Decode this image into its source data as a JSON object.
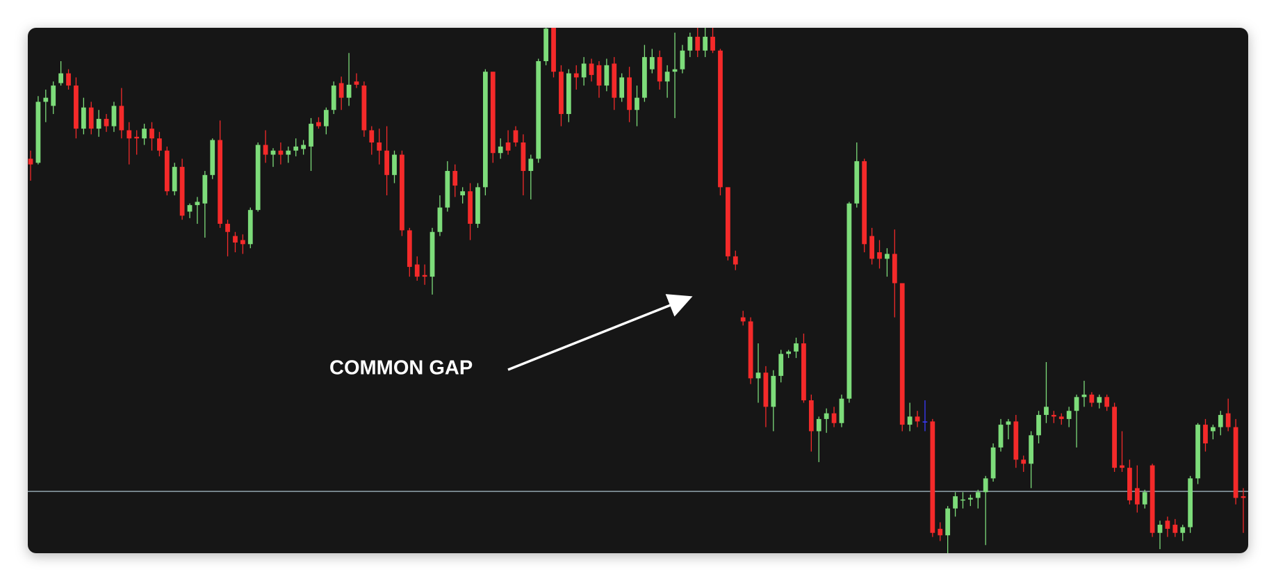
{
  "chart_data": {
    "type": "candlestick",
    "annotation": "COMMON GAP",
    "ylim": [
      0,
      646
    ],
    "up_color": "#7ddc7a",
    "down_color": "#f42a2a",
    "doji_color": "#3a3aff",
    "hline": {
      "value": 76,
      "color": "#9fb3bd"
    },
    "candles": [
      [
        485,
        495,
        458,
        478
      ],
      [
        480,
        562,
        478,
        555
      ],
      [
        555,
        570,
        530,
        560
      ],
      [
        550,
        580,
        540,
        575
      ],
      [
        578,
        605,
        575,
        590
      ],
      [
        590,
        595,
        570,
        575
      ],
      [
        575,
        585,
        510,
        522
      ],
      [
        522,
        560,
        515,
        548
      ],
      [
        548,
        555,
        515,
        522
      ],
      [
        522,
        545,
        512,
        534
      ],
      [
        534,
        540,
        518,
        525
      ],
      [
        525,
        555,
        518,
        550
      ],
      [
        550,
        572,
        510,
        520
      ],
      [
        520,
        530,
        478,
        510
      ],
      [
        512,
        520,
        490,
        510
      ],
      [
        510,
        528,
        502,
        522
      ],
      [
        522,
        530,
        495,
        510
      ],
      [
        510,
        518,
        488,
        495
      ],
      [
        495,
        500,
        440,
        445
      ],
      [
        445,
        480,
        440,
        475
      ],
      [
        475,
        485,
        410,
        415
      ],
      [
        420,
        430,
        412,
        428
      ],
      [
        428,
        438,
        405,
        432
      ],
      [
        430,
        470,
        388,
        465
      ],
      [
        465,
        510,
        460,
        508
      ],
      [
        508,
        532,
        400,
        405
      ],
      [
        405,
        410,
        365,
        395
      ],
      [
        390,
        395,
        370,
        382
      ],
      [
        385,
        392,
        368,
        380
      ],
      [
        380,
        425,
        375,
        422
      ],
      [
        422,
        505,
        420,
        502
      ],
      [
        502,
        520,
        480,
        490
      ],
      [
        490,
        498,
        475,
        495
      ],
      [
        495,
        505,
        478,
        490
      ],
      [
        490,
        500,
        480,
        495
      ],
      [
        495,
        510,
        488,
        500
      ],
      [
        497,
        508,
        490,
        502
      ],
      [
        500,
        535,
        470,
        528
      ],
      [
        530,
        536,
        522,
        525
      ],
      [
        525,
        548,
        515,
        545
      ],
      [
        545,
        580,
        540,
        575
      ],
      [
        578,
        586,
        545,
        560
      ],
      [
        560,
        615,
        550,
        576
      ],
      [
        580,
        590,
        572,
        576
      ],
      [
        575,
        580,
        512,
        520
      ],
      [
        520,
        525,
        490,
        505
      ],
      [
        505,
        522,
        478,
        495
      ],
      [
        495,
        525,
        440,
        465
      ],
      [
        465,
        495,
        455,
        490
      ],
      [
        490,
        495,
        390,
        397
      ],
      [
        397,
        400,
        340,
        352
      ],
      [
        355,
        365,
        335,
        340
      ],
      [
        342,
        355,
        330,
        340
      ],
      [
        340,
        400,
        318,
        395
      ],
      [
        395,
        440,
        390,
        425
      ],
      [
        425,
        482,
        420,
        470
      ],
      [
        470,
        478,
        438,
        452
      ],
      [
        440,
        450,
        430,
        445
      ],
      [
        445,
        455,
        385,
        405
      ],
      [
        405,
        455,
        400,
        450
      ],
      [
        450,
        595,
        440,
        592
      ],
      [
        592,
        592,
        480,
        492
      ],
      [
        492,
        510,
        485,
        500
      ],
      [
        505,
        520,
        490,
        495
      ],
      [
        520,
        525,
        500,
        505
      ],
      [
        505,
        515,
        440,
        470
      ],
      [
        470,
        490,
        435,
        485
      ],
      [
        485,
        608,
        480,
        605
      ],
      [
        605,
        646,
        600,
        645
      ],
      [
        646,
        646,
        585,
        592
      ],
      [
        592,
        600,
        525,
        540
      ],
      [
        540,
        595,
        530,
        590
      ],
      [
        590,
        600,
        570,
        585
      ],
      [
        585,
        610,
        575,
        602
      ],
      [
        602,
        608,
        580,
        588
      ],
      [
        600,
        605,
        560,
        575
      ],
      [
        575,
        608,
        568,
        600
      ],
      [
        602,
        610,
        545,
        560
      ],
      [
        560,
        590,
        555,
        585
      ],
      [
        585,
        598,
        530,
        545
      ],
      [
        545,
        575,
        525,
        560
      ],
      [
        560,
        625,
        555,
        610
      ],
      [
        595,
        620,
        590,
        610
      ],
      [
        610,
        618,
        570,
        580
      ],
      [
        580,
        600,
        560,
        592
      ],
      [
        592,
        640,
        535,
        595
      ],
      [
        595,
        625,
        590,
        618
      ],
      [
        618,
        640,
        610,
        635
      ],
      [
        635,
        646,
        610,
        618
      ],
      [
        618,
        646,
        610,
        635
      ],
      [
        635,
        646,
        615,
        618
      ],
      [
        618,
        620,
        440,
        450
      ],
      [
        450,
        450,
        360,
        365
      ],
      [
        365,
        372,
        348,
        355
      ],
      [
        290,
        298,
        280,
        285
      ],
      [
        285,
        290,
        208,
        215
      ],
      [
        215,
        258,
        185,
        222
      ],
      [
        222,
        230,
        155,
        180
      ],
      [
        180,
        225,
        150,
        218
      ],
      [
        218,
        250,
        210,
        245
      ],
      [
        245,
        250,
        240,
        248
      ],
      [
        248,
        265,
        240,
        258
      ],
      [
        258,
        270,
        185,
        188
      ],
      [
        188,
        195,
        125,
        150
      ],
      [
        150,
        168,
        112,
        165
      ],
      [
        165,
        178,
        148,
        172
      ],
      [
        172,
        180,
        155,
        160
      ],
      [
        160,
        195,
        155,
        190
      ],
      [
        190,
        432,
        185,
        430
      ],
      [
        430,
        505,
        425,
        482
      ],
      [
        482,
        485,
        370,
        380
      ],
      [
        390,
        400,
        355,
        362
      ],
      [
        370,
        385,
        350,
        362
      ],
      [
        362,
        375,
        340,
        368
      ],
      [
        368,
        398,
        290,
        332
      ],
      [
        332,
        332,
        150,
        158
      ],
      [
        158,
        185,
        150,
        168
      ],
      [
        168,
        175,
        155,
        162
      ],
      [
        162,
        188,
        150,
        162
      ],
      [
        162,
        165,
        20,
        25
      ],
      [
        30,
        38,
        15,
        22
      ],
      [
        22,
        58,
        0,
        55
      ],
      [
        55,
        75,
        45,
        70
      ],
      [
        65,
        75,
        55,
        66
      ],
      [
        66,
        72,
        58,
        68
      ],
      [
        68,
        78,
        55,
        75
      ],
      [
        75,
        95,
        10,
        92
      ],
      [
        92,
        135,
        88,
        130
      ],
      [
        130,
        165,
        125,
        158
      ],
      [
        158,
        165,
        140,
        162
      ],
      [
        162,
        170,
        105,
        115
      ],
      [
        115,
        120,
        100,
        110
      ],
      [
        110,
        150,
        80,
        145
      ],
      [
        145,
        175,
        135,
        170
      ],
      [
        170,
        235,
        160,
        180
      ],
      [
        170,
        175,
        160,
        168
      ],
      [
        168,
        172,
        158,
        165
      ],
      [
        165,
        180,
        155,
        175
      ],
      [
        175,
        195,
        130,
        192
      ],
      [
        192,
        212,
        180,
        195
      ],
      [
        195,
        198,
        180,
        185
      ],
      [
        185,
        195,
        178,
        192
      ],
      [
        192,
        195,
        175,
        180
      ],
      [
        180,
        185,
        100,
        105
      ],
      [
        108,
        150,
        100,
        105
      ],
      [
        105,
        115,
        60,
        65
      ],
      [
        80,
        108,
        50,
        60
      ],
      [
        60,
        78,
        55,
        75
      ],
      [
        108,
        110,
        20,
        25
      ],
      [
        25,
        40,
        5,
        35
      ],
      [
        40,
        45,
        20,
        30
      ],
      [
        35,
        42,
        20,
        25
      ],
      [
        25,
        35,
        15,
        32
      ],
      [
        32,
        95,
        25,
        92
      ],
      [
        92,
        160,
        85,
        158
      ],
      [
        158,
        165,
        125,
        135
      ],
      [
        150,
        158,
        140,
        155
      ],
      [
        155,
        175,
        145,
        170
      ],
      [
        172,
        190,
        150,
        155
      ],
      [
        155,
        165,
        60,
        68
      ],
      [
        70,
        80,
        25,
        68
      ]
    ]
  }
}
